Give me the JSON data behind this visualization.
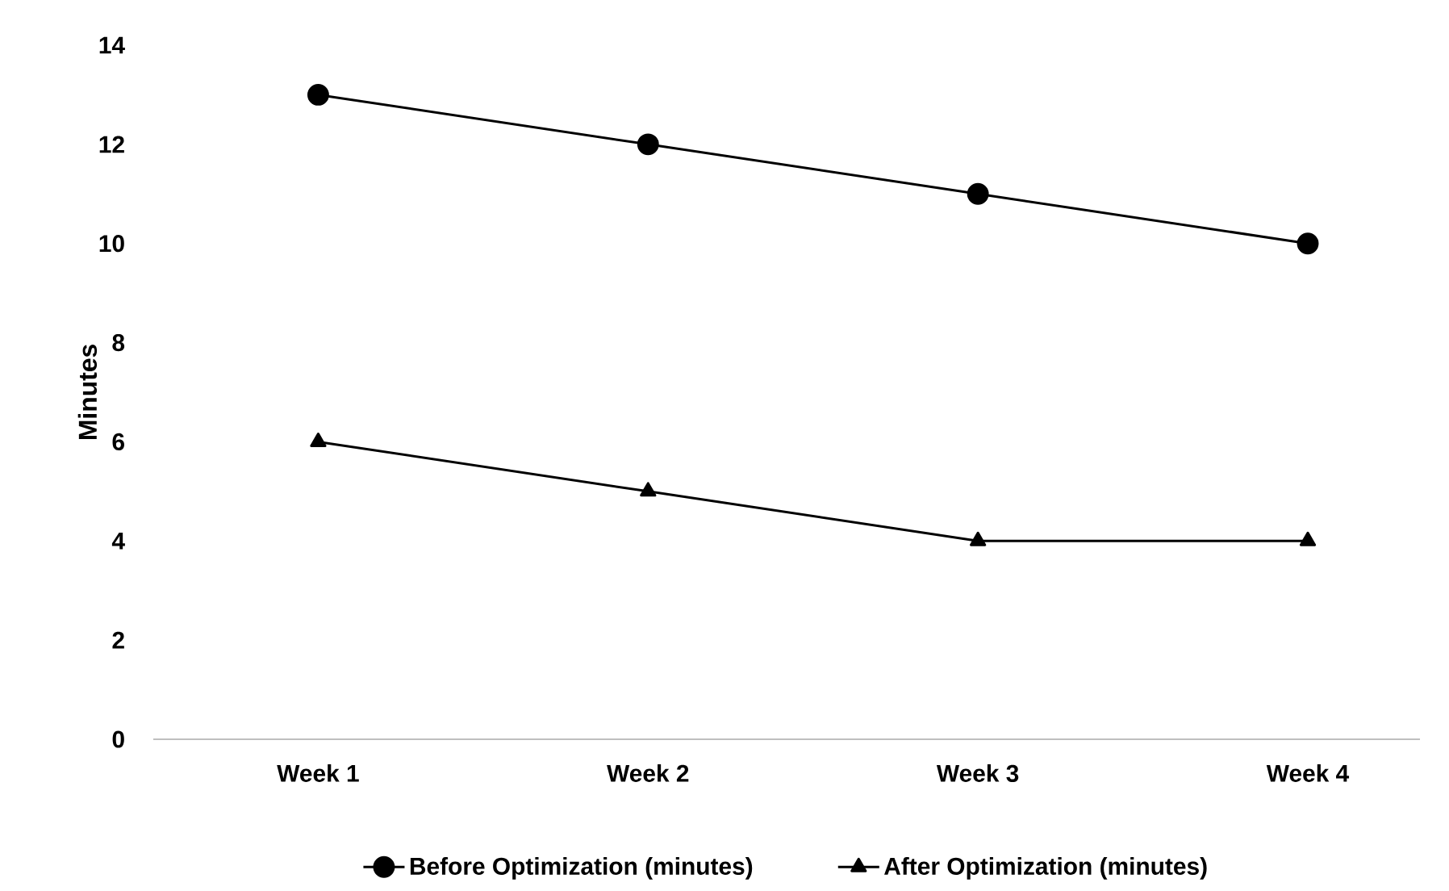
{
  "chart_data": {
    "type": "line",
    "ylabel": "Minutes",
    "categories": [
      "Week 1",
      "Week 2",
      "Week 3",
      "Week 4"
    ],
    "series": [
      {
        "name": "Before Optimization (minutes)",
        "color": "#000000",
        "values": [
          13,
          12,
          11,
          10
        ],
        "marker": "circle"
      },
      {
        "name": "After Optimization (minutes)",
        "color": "#000000",
        "values": [
          6,
          5,
          4,
          4
        ],
        "marker": "triangle"
      }
    ],
    "ylim": [
      0,
      14
    ],
    "yticks": [
      0,
      2,
      4,
      6,
      8,
      10,
      12,
      14
    ],
    "grid": false,
    "legend": "bottom",
    "line_style": "solid"
  }
}
